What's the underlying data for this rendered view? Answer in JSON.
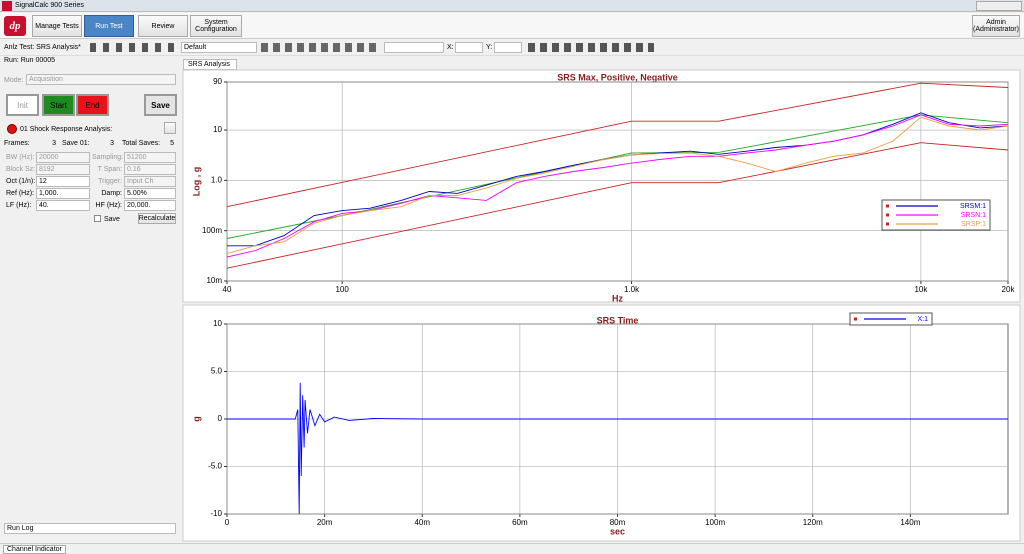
{
  "title_bar": {
    "title": "SignalCalc 900 Series"
  },
  "nav": {
    "buttons": [
      "Manage Tests",
      "Run Test",
      "Review",
      "System Configuration"
    ],
    "user": "Admin (Administrator)"
  },
  "toolbar": {
    "preset": "Default",
    "x_label": "X:",
    "y_label": "Y:"
  },
  "tab": "SRS Analysis",
  "left_panel": {
    "test": "Anlz Test: SRS Analysis*",
    "run": "Run: Run 00005",
    "mode_label": "Mode:",
    "mode": "Acquisition",
    "buttons": [
      "Init",
      "Start",
      "End",
      "Save"
    ],
    "section": "01 Shock Response Analysis:",
    "counters": [
      {
        "label": "Frames:",
        "value": "3"
      },
      {
        "label": "Save 01:",
        "value": "3"
      },
      {
        "label": "Total Saves:",
        "value": "5"
      }
    ],
    "settings": [
      {
        "label": "BW (Hz):",
        "value": "20000"
      },
      {
        "label": "Sampling:",
        "value": "51200"
      },
      {
        "label": "Block Sz:",
        "value": "8192"
      },
      {
        "label": "T Span:",
        "value": "0.16"
      },
      {
        "label": "Oct (1/n):",
        "value": "12"
      },
      {
        "label": "Trigger:",
        "value": "Input Ch"
      },
      {
        "label": "Ref (Hz):",
        "value": "1,000."
      },
      {
        "label": "Damp:",
        "value": "5.00%"
      },
      {
        "label": "LF (Hz):",
        "value": "40."
      },
      {
        "label": "HF (Hz):",
        "value": "20,000."
      }
    ],
    "save_check": "Save",
    "recalculate": "Recalculate"
  },
  "bottom": {
    "run_log": "Run Log",
    "channel_indicator": "Channel Indicator"
  },
  "chart_data": [
    {
      "type": "line",
      "title": "SRS Max, Positive, Negative",
      "x_label": "Hz",
      "y_label": "Log , g",
      "xscale": "log",
      "yscale": "log",
      "grid": true,
      "legend": "right",
      "xlim": [
        40,
        20000
      ],
      "xticks": [
        40,
        100,
        {
          "value": 1000,
          "label": "1.0k"
        },
        {
          "value": 10000,
          "label": "10k"
        },
        {
          "value": 20000,
          "label": "20k"
        }
      ],
      "ylim": [
        0.01,
        90
      ],
      "yticks": [
        {
          "value": 0.01,
          "label": "10m"
        },
        {
          "value": 0.1,
          "label": "100m"
        },
        {
          "value": 1,
          "label": "1.0"
        },
        10,
        90
      ],
      "series": [
        {
          "color": "#cc2222",
          "x": [
            40,
            1000,
            2000,
            10000,
            20000
          ],
          "values": [
            0.3,
            15,
            15,
            85,
            70
          ]
        },
        {
          "color": "#cc2222",
          "x": [
            40,
            1000,
            2000,
            10000,
            20000
          ],
          "values": [
            0.018,
            0.9,
            0.9,
            5.6,
            4
          ]
        },
        {
          "color": "#22aa22",
          "x": [
            40,
            100,
            1000,
            2000,
            10000,
            20000
          ],
          "values": [
            0.07,
            0.2,
            3.5,
            3.6,
            20,
            14
          ]
        },
        {
          "name": "SRSM:1",
          "color": "#0000cc",
          "x": [
            40,
            50,
            63,
            80,
            100,
            125,
            160,
            200,
            250,
            315,
            400,
            500,
            630,
            800,
            1000,
            1250,
            1600,
            2000,
            2500,
            3150,
            4000,
            5000,
            6300,
            8000,
            10000,
            12500,
            16000,
            20000
          ],
          "values": [
            0.05,
            0.05,
            0.08,
            0.2,
            0.25,
            0.28,
            0.4,
            0.6,
            0.55,
            0.8,
            1.2,
            1.5,
            2,
            2.6,
            3.2,
            3.5,
            3.8,
            3.3,
            3.8,
            4.5,
            5,
            6,
            8,
            13,
            22,
            14,
            11,
            12
          ]
        },
        {
          "name": "SRSN:1",
          "color": "#ff00ff",
          "x": [
            40,
            50,
            63,
            80,
            100,
            125,
            160,
            200,
            250,
            315,
            400,
            500,
            630,
            800,
            1000,
            1250,
            1600,
            2000,
            2500,
            3150,
            4000,
            5000,
            6300,
            8000,
            10000,
            12500,
            16000,
            20000
          ],
          "values": [
            0.03,
            0.04,
            0.07,
            0.15,
            0.22,
            0.25,
            0.35,
            0.5,
            0.45,
            0.4,
            0.9,
            1.2,
            1.5,
            1.8,
            2.2,
            2.6,
            3,
            3,
            3.5,
            4,
            5,
            6,
            8,
            12,
            20,
            13,
            12,
            13
          ]
        },
        {
          "name": "SRSP:1",
          "color": "#e8a040",
          "x": [
            40,
            50,
            63,
            80,
            100,
            125,
            160,
            200,
            250,
            315,
            400,
            500,
            630,
            800,
            1000,
            1250,
            1600,
            2000,
            2500,
            3150,
            4000,
            5000,
            6300,
            8000,
            10000,
            12500,
            16000,
            20000
          ],
          "values": [
            0.035,
            0.05,
            0.06,
            0.14,
            0.2,
            0.25,
            0.3,
            0.5,
            0.5,
            0.7,
            1.1,
            1.4,
            1.9,
            2.6,
            3.2,
            3.4,
            3.5,
            3,
            2.2,
            1.5,
            2.2,
            3,
            3.5,
            6,
            18,
            12,
            10,
            12
          ]
        }
      ]
    },
    {
      "type": "line",
      "title": "SRS Time",
      "x_label": "sec",
      "y_label": "g",
      "grid": true,
      "legend": "top-right",
      "xlim": [
        0,
        0.16
      ],
      "xticks": [
        0,
        {
          "value": 0.02,
          "label": "20m"
        },
        {
          "value": 0.04,
          "label": "40m"
        },
        {
          "value": 0.06,
          "label": "60m"
        },
        {
          "value": 0.08,
          "label": "80m"
        },
        {
          "value": 0.1,
          "label": "100m"
        },
        {
          "value": 0.12,
          "label": "120m"
        },
        {
          "value": 0.14,
          "label": "140m"
        }
      ],
      "ylim": [
        -10,
        10
      ],
      "yticks": [
        10,
        {
          "value": 5,
          "label": "5.0"
        },
        0,
        {
          "value": -5,
          "label": "-5.0"
        },
        -10
      ],
      "series": [
        {
          "name": "X:1",
          "color": "#0000ff",
          "x": [
            0,
            0.014,
            0.0145,
            0.0148,
            0.015,
            0.0152,
            0.0155,
            0.0158,
            0.016,
            0.0165,
            0.017,
            0.018,
            0.019,
            0.02,
            0.022,
            0.025,
            0.03,
            0.04,
            0.16
          ],
          "values": [
            0,
            0,
            1,
            -10,
            3.8,
            -6,
            2.5,
            -3,
            2,
            -1.5,
            1,
            -0.7,
            0.5,
            -0.3,
            0.2,
            -0.15,
            0.05,
            0,
            0
          ]
        }
      ]
    }
  ]
}
